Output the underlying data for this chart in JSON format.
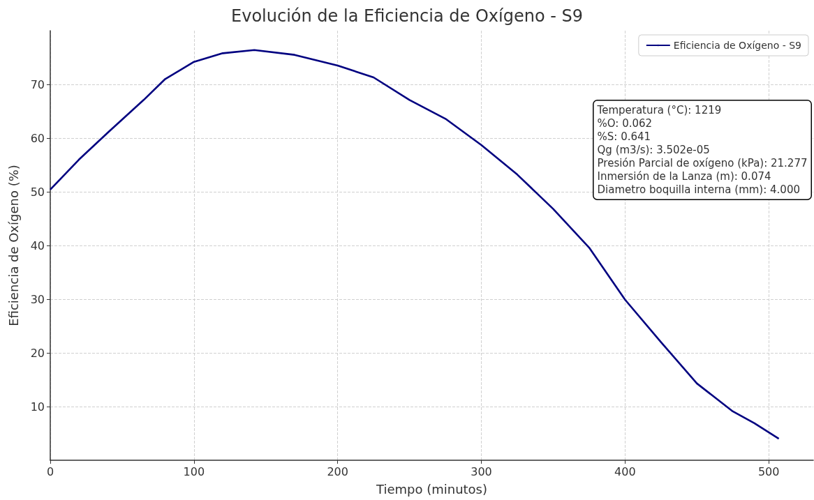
{
  "chart_data": {
    "type": "line",
    "title": "Evolución de la Eficiencia de Oxígeno - S9",
    "xlabel": "Tiempo (minutos)",
    "ylabel": "Eficiencia de Oxígeno (%)",
    "x": [
      0,
      20,
      40,
      65,
      80,
      100,
      120,
      142,
      170,
      200,
      225,
      250,
      275,
      300,
      325,
      350,
      375,
      400,
      425,
      450,
      475,
      490,
      507
    ],
    "series": [
      {
        "name": "Eficiencia de Oxígeno - S9",
        "color": "#000080",
        "values": [
          50.4,
          56,
          61,
          67.1,
          71,
          74.2,
          75.8,
          76.4,
          75.5,
          73.5,
          71.3,
          67.1,
          63.6,
          58.7,
          53.2,
          46.8,
          39.6,
          29.9,
          22,
          14.3,
          9.1,
          6.9,
          4
        ]
      }
    ],
    "xlim": [
      0,
      531
    ],
    "ylim": [
      0,
      80
    ],
    "xticks": [
      0,
      100,
      200,
      300,
      400,
      500
    ],
    "yticks": [
      10,
      20,
      30,
      40,
      50,
      60,
      70
    ],
    "grid": true,
    "legend": "top right",
    "marker": "none",
    "line_style": "solid",
    "annotations": [
      "Temperatura (°C): 1219",
      "%O: 0.062",
      "%S: 0.641",
      "Qg (m3/s): 3.502e-05",
      "Presión Parcial de oxígeno (kPa): 21.277",
      "Inmersión de la Lanza (m): 0.074",
      "Diametro boquilla interna (mm): 4.000"
    ]
  }
}
